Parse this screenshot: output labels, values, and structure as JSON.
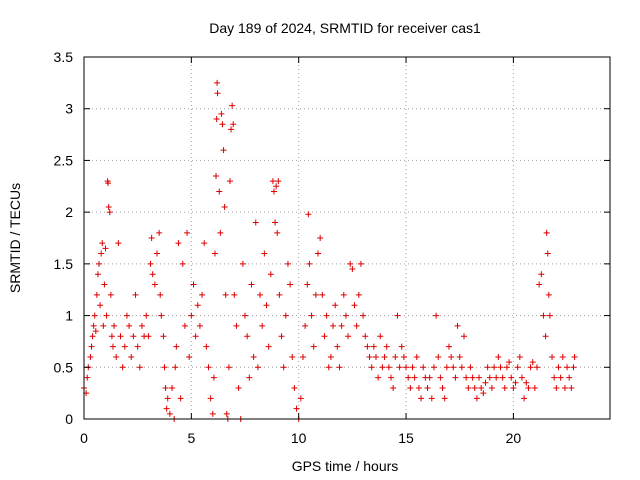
{
  "chart_data": {
    "type": "scatter",
    "title": "Day 189 of 2024, SRMTID for receiver cas1",
    "xlabel": "GPS time / hours",
    "ylabel": "SRMTID / TECUs",
    "xlim": [
      0,
      24.5
    ],
    "ylim": [
      0,
      3.5
    ],
    "x_ticks": [
      0,
      5,
      10,
      15,
      20
    ],
    "x_tick_labels": [
      "0",
      "5",
      "10",
      "15",
      "20"
    ],
    "y_ticks": [
      0,
      0.5,
      1,
      1.5,
      2,
      2.5,
      3,
      3.5
    ],
    "y_tick_labels": [
      "0",
      "0.5",
      "1",
      "1.5",
      "2",
      "2.5",
      "3",
      "3.5"
    ],
    "grid": true,
    "marker": "+",
    "color": "#dd0000",
    "series": [
      {
        "name": "cas1",
        "points": [
          [
            0.0,
            0.3
          ],
          [
            0.1,
            0.25
          ],
          [
            0.15,
            0.4
          ],
          [
            0.2,
            0.5
          ],
          [
            0.3,
            0.6
          ],
          [
            0.35,
            0.7
          ],
          [
            0.4,
            0.8
          ],
          [
            0.45,
            0.9
          ],
          [
            0.5,
            1.0
          ],
          [
            0.55,
            0.85
          ],
          [
            0.6,
            1.2
          ],
          [
            0.65,
            1.4
          ],
          [
            0.7,
            1.5
          ],
          [
            0.75,
            1.1
          ],
          [
            0.8,
            1.6
          ],
          [
            0.85,
            1.7
          ],
          [
            0.9,
            0.9
          ],
          [
            0.95,
            1.3
          ],
          [
            1.0,
            1.65
          ],
          [
            1.05,
            1.0
          ],
          [
            1.1,
            2.3
          ],
          [
            1.12,
            2.28
          ],
          [
            1.15,
            2.05
          ],
          [
            1.2,
            2.0
          ],
          [
            1.25,
            1.2
          ],
          [
            1.3,
            0.8
          ],
          [
            1.35,
            0.7
          ],
          [
            1.4,
            0.9
          ],
          [
            1.5,
            0.6
          ],
          [
            1.6,
            1.7
          ],
          [
            1.7,
            0.8
          ],
          [
            1.8,
            0.5
          ],
          [
            1.9,
            0.7
          ],
          [
            2.0,
            1.0
          ],
          [
            2.1,
            0.9
          ],
          [
            2.2,
            0.6
          ],
          [
            2.3,
            0.8
          ],
          [
            2.4,
            1.2
          ],
          [
            2.5,
            0.7
          ],
          [
            2.6,
            0.5
          ],
          [
            2.7,
            0.9
          ],
          [
            2.8,
            0.8
          ],
          [
            2.9,
            1.0
          ],
          [
            3.0,
            0.8
          ],
          [
            3.1,
            1.5
          ],
          [
            3.15,
            1.75
          ],
          [
            3.2,
            1.4
          ],
          [
            3.3,
            1.3
          ],
          [
            3.4,
            1.6
          ],
          [
            3.5,
            1.8
          ],
          [
            3.55,
            1.2
          ],
          [
            3.6,
            1.0
          ],
          [
            3.7,
            0.8
          ],
          [
            3.75,
            0.5
          ],
          [
            3.8,
            0.3
          ],
          [
            3.85,
            0.1
          ],
          [
            3.9,
            0.2
          ],
          [
            4.0,
            0.05
          ],
          [
            4.1,
            0.3
          ],
          [
            4.2,
            0.0
          ],
          [
            4.25,
            0.5
          ],
          [
            4.3,
            0.7
          ],
          [
            4.4,
            1.7
          ],
          [
            4.5,
            0.2
          ],
          [
            4.6,
            1.5
          ],
          [
            4.7,
            0.9
          ],
          [
            4.8,
            1.8
          ],
          [
            4.9,
            0.6
          ],
          [
            5.0,
            1.0
          ],
          [
            5.1,
            1.3
          ],
          [
            5.2,
            0.8
          ],
          [
            5.3,
            1.1
          ],
          [
            5.4,
            0.9
          ],
          [
            5.5,
            1.2
          ],
          [
            5.6,
            1.7
          ],
          [
            5.7,
            0.7
          ],
          [
            5.8,
            0.5
          ],
          [
            5.9,
            0.2
          ],
          [
            6.0,
            0.05
          ],
          [
            6.05,
            0.4
          ],
          [
            6.1,
            1.6
          ],
          [
            6.15,
            2.35
          ],
          [
            6.18,
            2.9
          ],
          [
            6.2,
            3.25
          ],
          [
            6.22,
            3.15
          ],
          [
            6.3,
            2.2
          ],
          [
            6.35,
            1.8
          ],
          [
            6.4,
            2.95
          ],
          [
            6.45,
            2.85
          ],
          [
            6.5,
            2.6
          ],
          [
            6.55,
            2.05
          ],
          [
            6.6,
            1.2
          ],
          [
            6.65,
            0.05
          ],
          [
            6.7,
            0.0
          ],
          [
            6.75,
            0.5
          ],
          [
            6.8,
            2.3
          ],
          [
            6.85,
            2.8
          ],
          [
            6.9,
            3.03
          ],
          [
            6.95,
            2.85
          ],
          [
            7.0,
            1.2
          ],
          [
            7.1,
            0.9
          ],
          [
            7.2,
            0.3
          ],
          [
            7.3,
            0.0
          ],
          [
            7.4,
            1.5
          ],
          [
            7.5,
            1.0
          ],
          [
            7.6,
            0.8
          ],
          [
            7.7,
            0.4
          ],
          [
            7.8,
            1.3
          ],
          [
            7.9,
            0.6
          ],
          [
            8.0,
            1.9
          ],
          [
            8.1,
            0.5
          ],
          [
            8.2,
            1.2
          ],
          [
            8.3,
            0.9
          ],
          [
            8.4,
            1.6
          ],
          [
            8.5,
            1.1
          ],
          [
            8.6,
            0.7
          ],
          [
            8.7,
            1.4
          ],
          [
            8.8,
            2.3
          ],
          [
            8.85,
            2.2
          ],
          [
            8.9,
            1.9
          ],
          [
            8.95,
            2.25
          ],
          [
            9.0,
            1.8
          ],
          [
            9.05,
            2.3
          ],
          [
            9.1,
            1.2
          ],
          [
            9.2,
            0.8
          ],
          [
            9.3,
            0.5
          ],
          [
            9.4,
            1.0
          ],
          [
            9.5,
            1.5
          ],
          [
            9.6,
            1.3
          ],
          [
            9.7,
            0.6
          ],
          [
            9.8,
            0.3
          ],
          [
            9.9,
            0.1
          ],
          [
            10.0,
            0.0
          ],
          [
            10.1,
            0.2
          ],
          [
            10.2,
            0.6
          ],
          [
            10.3,
            0.9
          ],
          [
            10.4,
            1.3
          ],
          [
            10.45,
            1.98
          ],
          [
            10.5,
            1.5
          ],
          [
            10.6,
            1.0
          ],
          [
            10.7,
            0.7
          ],
          [
            10.8,
            1.2
          ],
          [
            10.9,
            1.6
          ],
          [
            11.0,
            1.75
          ],
          [
            11.1,
            1.2
          ],
          [
            11.2,
            0.8
          ],
          [
            11.3,
            1.0
          ],
          [
            11.4,
            0.5
          ],
          [
            11.5,
            0.6
          ],
          [
            11.6,
            0.9
          ],
          [
            11.7,
            1.1
          ],
          [
            11.8,
            0.7
          ],
          [
            11.9,
            0.5
          ],
          [
            12.0,
            0.9
          ],
          [
            12.1,
            1.2
          ],
          [
            12.2,
            1.0
          ],
          [
            12.3,
            0.8
          ],
          [
            12.4,
            1.5
          ],
          [
            12.5,
            1.45
          ],
          [
            12.6,
            1.1
          ],
          [
            12.7,
            0.9
          ],
          [
            12.8,
            1.2
          ],
          [
            12.9,
            1.5
          ],
          [
            13.0,
            1.0
          ],
          [
            13.1,
            0.8
          ],
          [
            13.2,
            0.7
          ],
          [
            13.3,
            0.6
          ],
          [
            13.4,
            0.5
          ],
          [
            13.5,
            0.7
          ],
          [
            13.6,
            0.6
          ],
          [
            13.7,
            0.4
          ],
          [
            13.8,
            0.8
          ],
          [
            13.9,
            0.5
          ],
          [
            14.0,
            0.6
          ],
          [
            14.1,
            0.7
          ],
          [
            14.2,
            0.5
          ],
          [
            14.3,
            0.4
          ],
          [
            14.4,
            0.3
          ],
          [
            14.5,
            0.6
          ],
          [
            14.6,
            1.0
          ],
          [
            14.7,
            0.5
          ],
          [
            14.8,
            0.7
          ],
          [
            14.9,
            0.6
          ],
          [
            15.0,
            0.5
          ],
          [
            15.1,
            0.4
          ],
          [
            15.2,
            0.3
          ],
          [
            15.3,
            0.5
          ],
          [
            15.4,
            0.4
          ],
          [
            15.5,
            0.6
          ],
          [
            15.6,
            0.3
          ],
          [
            15.7,
            0.2
          ],
          [
            15.8,
            0.5
          ],
          [
            15.9,
            0.4
          ],
          [
            16.0,
            0.3
          ],
          [
            16.1,
            0.4
          ],
          [
            16.2,
            0.2
          ],
          [
            16.3,
            0.5
          ],
          [
            16.4,
            1.0
          ],
          [
            16.5,
            0.6
          ],
          [
            16.6,
            0.4
          ],
          [
            16.7,
            0.3
          ],
          [
            16.8,
            0.2
          ],
          [
            16.9,
            0.5
          ],
          [
            17.0,
            0.7
          ],
          [
            17.1,
            0.6
          ],
          [
            17.2,
            0.5
          ],
          [
            17.3,
            0.4
          ],
          [
            17.4,
            0.9
          ],
          [
            17.5,
            0.6
          ],
          [
            17.6,
            0.5
          ],
          [
            17.7,
            0.8
          ],
          [
            17.8,
            0.4
          ],
          [
            17.9,
            0.3
          ],
          [
            18.0,
            0.5
          ],
          [
            18.1,
            0.4
          ],
          [
            18.2,
            0.3
          ],
          [
            18.3,
            0.2
          ],
          [
            18.4,
            0.4
          ],
          [
            18.5,
            0.3
          ],
          [
            18.6,
            0.25
          ],
          [
            18.7,
            0.35
          ],
          [
            18.8,
            0.5
          ],
          [
            18.9,
            0.4
          ],
          [
            19.0,
            0.3
          ],
          [
            19.1,
            0.5
          ],
          [
            19.2,
            0.4
          ],
          [
            19.3,
            0.6
          ],
          [
            19.4,
            0.5
          ],
          [
            19.5,
            0.4
          ],
          [
            19.6,
            0.3
          ],
          [
            19.7,
            0.5
          ],
          [
            19.8,
            0.55
          ],
          [
            19.9,
            0.4
          ],
          [
            20.0,
            0.3
          ],
          [
            20.1,
            0.35
          ],
          [
            20.2,
            0.5
          ],
          [
            20.3,
            0.6
          ],
          [
            20.4,
            0.4
          ],
          [
            20.5,
            0.2
          ],
          [
            20.6,
            0.35
          ],
          [
            20.7,
            0.3
          ],
          [
            20.8,
            0.5
          ],
          [
            20.9,
            0.55
          ],
          [
            21.0,
            0.3
          ],
          [
            21.1,
            0.5
          ],
          [
            21.2,
            1.3
          ],
          [
            21.3,
            1.4
          ],
          [
            21.4,
            1.0
          ],
          [
            21.5,
            0.8
          ],
          [
            21.55,
            1.8
          ],
          [
            21.6,
            1.6
          ],
          [
            21.65,
            1.2
          ],
          [
            21.7,
            1.0
          ],
          [
            21.8,
            0.6
          ],
          [
            21.9,
            0.4
          ],
          [
            22.0,
            0.3
          ],
          [
            22.1,
            0.5
          ],
          [
            22.2,
            0.4
          ],
          [
            22.3,
            0.6
          ],
          [
            22.4,
            0.3
          ],
          [
            22.5,
            0.5
          ],
          [
            22.6,
            0.4
          ],
          [
            22.7,
            0.3
          ],
          [
            22.8,
            0.5
          ],
          [
            22.85,
            0.6
          ]
        ]
      }
    ]
  }
}
